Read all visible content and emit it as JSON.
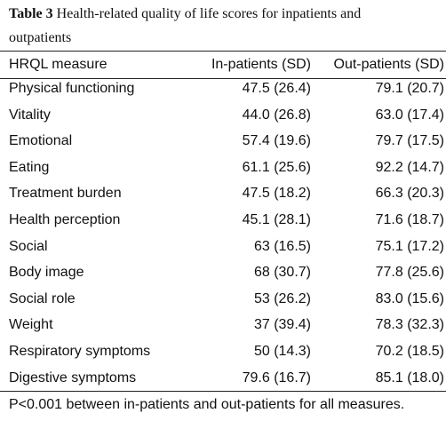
{
  "table": {
    "label": "Table 3",
    "title": "Health-related quality of life scores for inpatients and outpatients",
    "header": [
      "HRQL measure",
      "In-patients (SD)",
      "Out-patients (SD)"
    ],
    "rows": [
      [
        "Physical functioning",
        "47.5 (26.4)",
        "79.1 (20.7)"
      ],
      [
        "Vitality",
        "44.0 (26.8)",
        "63.0 (17.4)"
      ],
      [
        "Emotional",
        "57.4 (19.6)",
        "79.7 (17.5)"
      ],
      [
        "Eating",
        "61.1 (25.6)",
        "92.2 (14.7)"
      ],
      [
        "Treatment burden",
        "47.5 (18.2)",
        "66.3 (20.3)"
      ],
      [
        "Health perception",
        "45.1 (28.1)",
        "71.6 (18.7)"
      ],
      [
        "Social",
        "63 (16.5)",
        "75.1 (17.2)"
      ],
      [
        "Body image",
        "68 (30.7)",
        "77.8 (25.6)"
      ],
      [
        "Social role",
        "53 (26.2)",
        "83.0 (15.6)"
      ],
      [
        "Weight",
        "37 (39.4)",
        "78.3 (32.3)"
      ],
      [
        "Respiratory symptoms",
        "50 (14.3)",
        "70.2 (18.5)"
      ],
      [
        "Digestive symptoms",
        "79.6 (16.7)",
        "85.1 (18.0)"
      ]
    ],
    "footnote": "P<0.001 between in-patients and out-patients for all measures."
  }
}
